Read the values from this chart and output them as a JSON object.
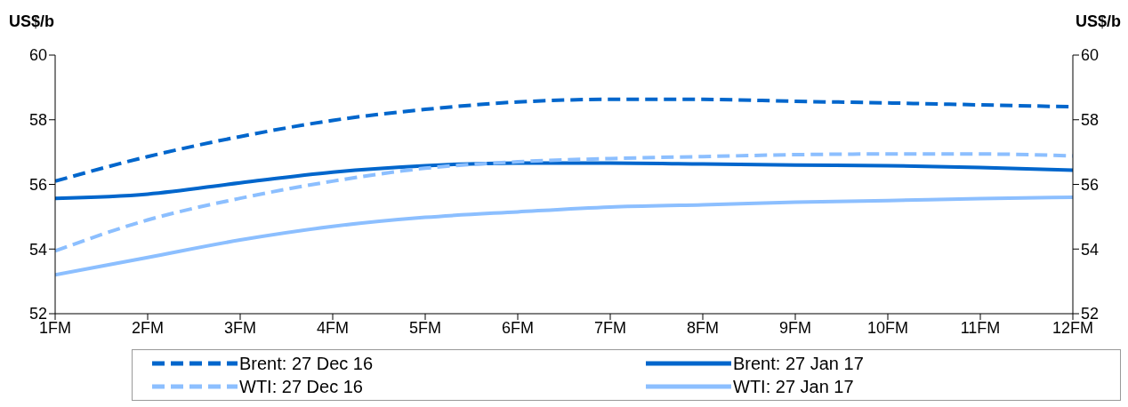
{
  "chart_data": {
    "type": "line",
    "ylabel": "US$/b",
    "y2label": "US$/b",
    "categories": [
      "1FM",
      "2FM",
      "3FM",
      "4FM",
      "5FM",
      "6FM",
      "7FM",
      "8FM",
      "9FM",
      "10FM",
      "11FM",
      "12FM"
    ],
    "ylim": [
      52,
      60
    ],
    "yticks": [
      52,
      54,
      56,
      58,
      60
    ],
    "y2lim": [
      52,
      60
    ],
    "y2ticks": [
      52,
      54,
      56,
      58,
      60
    ],
    "grid": false,
    "legend": "bottom",
    "marker": "none",
    "series": [
      {
        "name": "Brent: 27 Dec 16",
        "color": "#0066cc",
        "line_style": "dashed",
        "values": [
          56.1,
          56.86,
          57.48,
          57.98,
          58.32,
          58.55,
          58.63,
          58.63,
          58.57,
          58.52,
          58.46,
          58.4
        ]
      },
      {
        "name": "Brent: 27 Jan 17",
        "color": "#0066cc",
        "line_style": "solid",
        "values": [
          55.57,
          55.7,
          56.05,
          56.38,
          56.58,
          56.66,
          56.66,
          56.63,
          56.6,
          56.58,
          56.52,
          56.44
        ]
      },
      {
        "name": "WTI: 27 Dec 16",
        "color": "#8cbfff",
        "line_style": "dashed",
        "values": [
          53.94,
          54.9,
          55.57,
          56.1,
          56.5,
          56.7,
          56.8,
          56.86,
          56.92,
          56.94,
          56.94,
          56.88
        ]
      },
      {
        "name": "WTI: 27 Jan 17",
        "color": "#8cbfff",
        "line_style": "solid",
        "values": [
          53.2,
          53.74,
          54.28,
          54.7,
          54.98,
          55.15,
          55.3,
          55.37,
          55.45,
          55.5,
          55.56,
          55.6
        ]
      }
    ]
  }
}
